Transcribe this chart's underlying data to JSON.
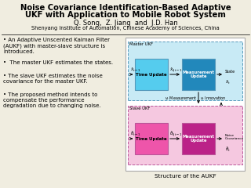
{
  "title_line1": "Noise Covariance Identification-Based Adaptive",
  "title_line2": "UKF with Application to Mobile Robot System",
  "authors": "Q. Song,  Z. Jiang  and  J.D. Han",
  "affiliation": "Shenyang Institute of Automation, Chinese Academy of Sciences, China",
  "bullets": [
    "An Adaptive Unscented Kalman Filter\n(AUKF) with master-slave structure is\nintroduced.",
    " The master UKF estimates the states.",
    "The slave UKF estimates the noise\ncovariance for the master UKF.",
    "The proposed method intends to\ncompensate the performance\ndegradation due to changing noise."
  ],
  "diagram_caption": "Structure of the AUKF",
  "bg_color": "#f0ede0",
  "title_fontsize": 7.2,
  "author_fontsize": 6.0,
  "affil_fontsize": 4.8,
  "bullet_fontsize": 5.0,
  "caption_fontsize": 5.2,
  "master_box_color": "#c8eaf5",
  "master_border_color": "#5599bb",
  "slave_box_color": "#f5c8e0",
  "slave_border_color": "#bb5599",
  "time_update_master_color": "#55ccee",
  "measure_update_master_color": "#2288bb",
  "time_update_slave_color": "#ee55aa",
  "measure_update_slave_color": "#bb2288",
  "outer_box_color": "#aaaaaa",
  "arrow_color": "#333333"
}
